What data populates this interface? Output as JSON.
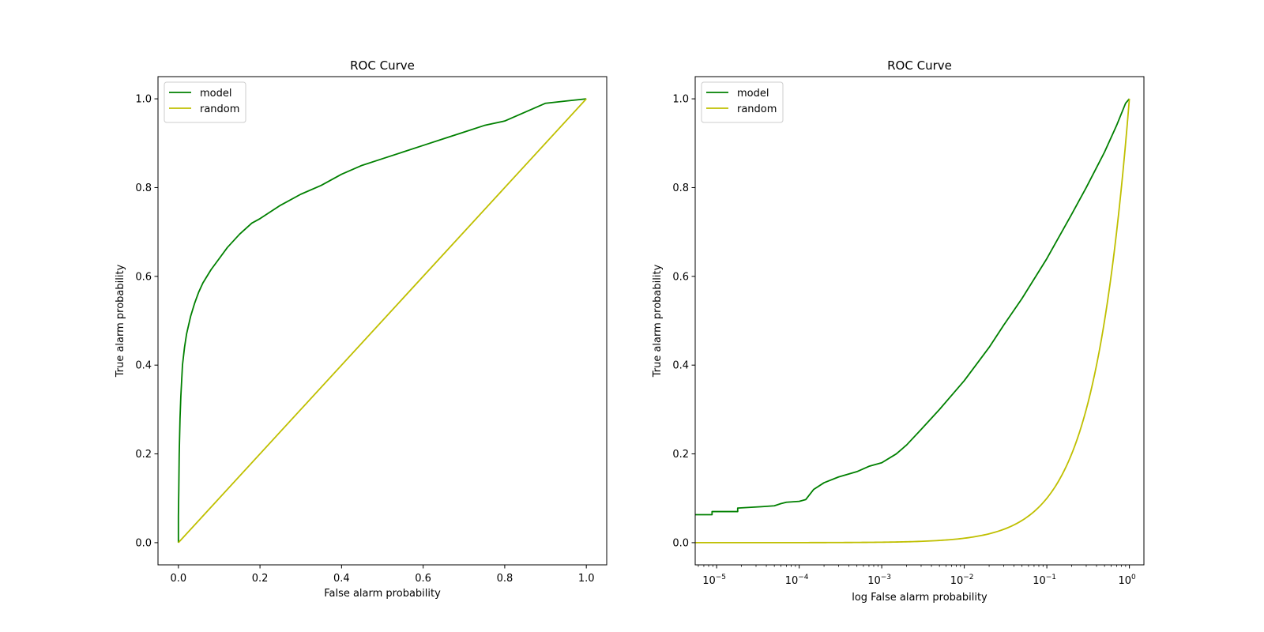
{
  "chart_data": [
    {
      "type": "line",
      "title": "ROC Curve",
      "xlabel": "False alarm probability",
      "ylabel": "True alarm probability",
      "xscale": "linear",
      "xlim": [
        -0.05,
        1.05
      ],
      "ylim": [
        -0.05,
        1.05
      ],
      "xticks": [
        0.0,
        0.2,
        0.4,
        0.6,
        0.8,
        1.0
      ],
      "xtick_labels": [
        "0.0",
        "0.2",
        "0.4",
        "0.6",
        "0.8",
        "1.0"
      ],
      "yticks": [
        0.0,
        0.2,
        0.4,
        0.6,
        0.8,
        1.0
      ],
      "ytick_labels": [
        "0.0",
        "0.2",
        "0.4",
        "0.6",
        "0.8",
        "1.0"
      ],
      "grid": false,
      "legend_position": "upper-left",
      "series": [
        {
          "name": "model",
          "color": "#008000",
          "x": [
            0,
            0,
            0.001,
            0.002,
            0.004,
            0.006,
            0.01,
            0.015,
            0.02,
            0.03,
            0.04,
            0.05,
            0.06,
            0.08,
            0.1,
            0.12,
            0.15,
            0.18,
            0.2,
            0.25,
            0.3,
            0.35,
            0.4,
            0.45,
            0.5,
            0.55,
            0.6,
            0.65,
            0.7,
            0.75,
            0.8,
            0.85,
            0.9,
            0.95,
            1.0
          ],
          "y": [
            0,
            0.06,
            0.12,
            0.2,
            0.28,
            0.33,
            0.4,
            0.44,
            0.47,
            0.51,
            0.54,
            0.565,
            0.585,
            0.615,
            0.64,
            0.665,
            0.695,
            0.72,
            0.73,
            0.76,
            0.785,
            0.805,
            0.83,
            0.85,
            0.865,
            0.88,
            0.895,
            0.91,
            0.925,
            0.94,
            0.95,
            0.97,
            0.99,
            0.995,
            1.0
          ]
        },
        {
          "name": "random",
          "color": "#bfbf00",
          "x": [
            0,
            1
          ],
          "y": [
            0,
            1
          ]
        }
      ]
    },
    {
      "type": "line",
      "title": "ROC Curve",
      "xlabel": "log False alarm probability",
      "ylabel": "True alarm probability",
      "xscale": "log",
      "xlim": [
        5.5e-06,
        1.5
      ],
      "ylim": [
        -0.05,
        1.05
      ],
      "xticks": [
        1e-05,
        0.0001,
        0.001,
        0.01,
        0.1,
        1
      ],
      "xtick_labels": [
        {
          "base": "10",
          "exp": "−5"
        },
        {
          "base": "10",
          "exp": "−4"
        },
        {
          "base": "10",
          "exp": "−3"
        },
        {
          "base": "10",
          "exp": "−2"
        },
        {
          "base": "10",
          "exp": "−1"
        },
        {
          "base": "10",
          "exp": "0"
        }
      ],
      "yticks": [
        0.0,
        0.2,
        0.4,
        0.6,
        0.8,
        1.0
      ],
      "ytick_labels": [
        "0.0",
        "0.2",
        "0.4",
        "0.6",
        "0.8",
        "1.0"
      ],
      "grid": false,
      "legend_position": "upper-left",
      "series": [
        {
          "name": "model",
          "color": "#008000",
          "x": [
            5.5e-06,
            8.8e-06,
            8.8e-06,
            1.8e-05,
            1.8e-05,
            3.5e-05,
            5e-05,
            6e-05,
            7e-05,
            0.0001,
            0.00012,
            0.00015,
            0.0002,
            0.0003,
            0.0005,
            0.0007,
            0.001,
            0.0015,
            0.002,
            0.003,
            0.005,
            0.01,
            0.02,
            0.03,
            0.05,
            0.1,
            0.2,
            0.3,
            0.5,
            0.7,
            0.9,
            1.0
          ],
          "y": [
            0.063,
            0.063,
            0.07,
            0.07,
            0.078,
            0.081,
            0.083,
            0.088,
            0.091,
            0.093,
            0.097,
            0.12,
            0.135,
            0.148,
            0.16,
            0.172,
            0.18,
            0.2,
            0.22,
            0.255,
            0.3,
            0.365,
            0.44,
            0.49,
            0.55,
            0.64,
            0.74,
            0.8,
            0.88,
            0.94,
            0.99,
            1.0
          ]
        },
        {
          "name": "random",
          "color": "#bfbf00",
          "x": [
            5.5e-06,
            1e-05,
            0.0001,
            0.001,
            0.003,
            0.01,
            0.02,
            0.03,
            0.05,
            0.07,
            0.1,
            0.15,
            0.2,
            0.3,
            0.4,
            0.5,
            0.6,
            0.7,
            0.8,
            0.9,
            1.0
          ],
          "y": [
            5.5e-06,
            1e-05,
            0.0001,
            0.001,
            0.003,
            0.01,
            0.02,
            0.03,
            0.05,
            0.07,
            0.1,
            0.15,
            0.2,
            0.3,
            0.4,
            0.5,
            0.6,
            0.7,
            0.8,
            0.9,
            1.0
          ]
        }
      ]
    }
  ]
}
